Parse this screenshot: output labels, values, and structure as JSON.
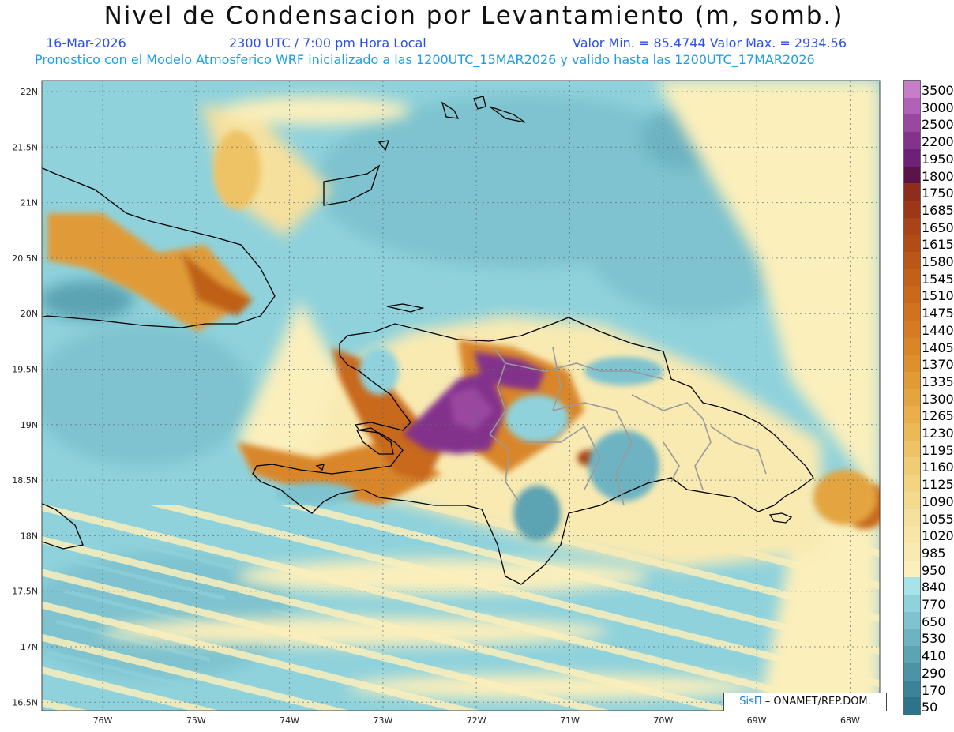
{
  "title": "Nivel de Condensacion por Levantamiento (m, somb.)",
  "date": "16-Mar-2026",
  "time": "2300 UTC / 7:00 pm Hora Local",
  "value_range": "Valor Min. = 85.4744   Valor Max. = 2934.56",
  "model_info": "Pronostico con el Modelo Atmosferico WRF inicializado a las 1200UTC_15MAR2026 y valido hasta las  1200UTC_17MAR2026",
  "lat_labels": [
    "22N",
    "21.5N",
    "21N",
    "20.5N",
    "20N",
    "19.5N",
    "19N",
    "18.5N",
    "18N",
    "17.5N",
    "17N",
    "16.5N"
  ],
  "lon_labels": [
    "76W",
    "75W",
    "74W",
    "73W",
    "72W",
    "71W",
    "70W",
    "69W",
    "68W"
  ],
  "legend_levels": [
    "3500",
    "3000",
    "2500",
    "2200",
    "1950",
    "1800",
    "1750",
    "1685",
    "1650",
    "1615",
    "1580",
    "1545",
    "1510",
    "1475",
    "1440",
    "1405",
    "1370",
    "1335",
    "1300",
    "1265",
    "1230",
    "1195",
    "1160",
    "1125",
    "1090",
    "1055",
    "1020",
    "985",
    "950",
    "840",
    "770",
    "650",
    "530",
    "410",
    "290",
    "170",
    "50"
  ],
  "legend_colors": [
    "#c77dc9",
    "#b161b6",
    "#9a47a0",
    "#83338c",
    "#6c2077",
    "#5a1448",
    "#8e2d1a",
    "#9c3817",
    "#a84417",
    "#b04d17",
    "#b85718",
    "#c06019",
    "#c8691b",
    "#cf731f",
    "#d47c24",
    "#d98629",
    "#dd902f",
    "#e09b37",
    "#e4a540",
    "#e8af4b",
    "#ebb958",
    "#eec366",
    "#f0cc74",
    "#f2d483",
    "#f4da90",
    "#f6e09d",
    "#f8e6a8",
    "#f9eab2",
    "#fbefbc",
    "#a7e4ea",
    "#8fd2dc",
    "#7ec3cf",
    "#6db3c2",
    "#5ca3b4",
    "#4c93a6",
    "#3d8398",
    "#2f738a"
  ],
  "credit_brand": "SisΠ",
  "credit_text": "– ONAMET/REP.DOM."
}
